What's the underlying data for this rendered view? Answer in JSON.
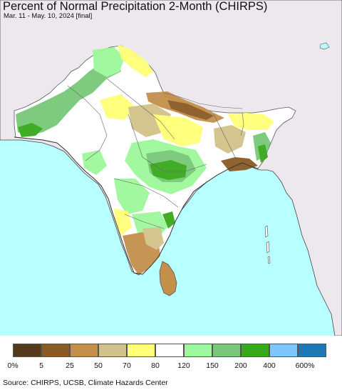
{
  "header": {
    "title": "Percent of Normal Precipitation 2-Month (CHIRPS)",
    "subtitle": "Mar. 11 - May. 10, 2024 [final]"
  },
  "legend": {
    "colors": [
      "#54391a",
      "#8b5a24",
      "#c48f4b",
      "#d2c28a",
      "#ffff78",
      "#ffffff",
      "#9cf89a",
      "#78c878",
      "#37a81a",
      "#7fc6ff",
      "#1f78b4"
    ],
    "ticks": [
      "0%",
      "5",
      "25",
      "50",
      "70",
      "80",
      "120",
      "150",
      "200",
      "400",
      "600%"
    ]
  },
  "footer": {
    "source": "Source: CHIRPS, UCSB, Climate Hazards Center"
  }
}
